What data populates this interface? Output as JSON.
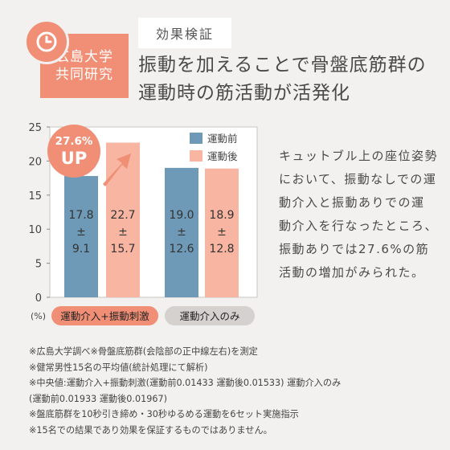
{
  "badge": {
    "line1": "広島大学",
    "line2": "共同研究"
  },
  "tag": "効果検証",
  "headline": [
    "振動を加えることで骨盤底筋群の",
    "運動時の筋活動が活発化"
  ],
  "description": [
    "キュットブル上の座位姿勢",
    "において、振動なしでの運",
    "動介入と振動ありでの運",
    "動介入を行なったところ、",
    "振動ありでは27.6%の筋",
    "活動の増加がみられた。"
  ],
  "callout": {
    "value": "27.6%",
    "word": "UP"
  },
  "colors": {
    "before": "#6f9ab7",
    "after": "#f7b5a2",
    "accent": "#f08f76",
    "group2_label_bg": "#d4d1ce"
  },
  "chart_data": {
    "type": "bar",
    "categories": [
      "運動介入+振動刺激",
      "運動介入のみ"
    ],
    "series": [
      {
        "name": "運動前",
        "values": [
          17.8,
          19.0
        ],
        "labels": [
          "17.8\n±\n9.1",
          "19.0\n±\n12.6"
        ]
      },
      {
        "name": "運動後",
        "values": [
          22.7,
          18.9
        ],
        "labels": [
          "22.7\n±\n15.7",
          "18.9\n±\n12.8"
        ]
      }
    ],
    "yunit": "(%)",
    "ylim": [
      0,
      25
    ],
    "yticks": [
      0,
      5,
      10,
      15,
      20,
      25
    ],
    "legend": "top-right",
    "grid": false
  },
  "notes": [
    "※広島大学調べ※骨盤底筋群(会陰部の正中線左右)を測定",
    "※健常男性15名の平均値(統計処理にて解析)",
    "※中央値:運動介入+振動刺激(運動前0.01433 運動後0.01533) 運動介入のみ",
    "(運動前0.01933 運動後0.01967)",
    "※盤底筋群を10秒引き締め・30秒ゆるめる運動を6セット実施指示",
    "※15名での結果であり効果を保証するものではありません。"
  ]
}
